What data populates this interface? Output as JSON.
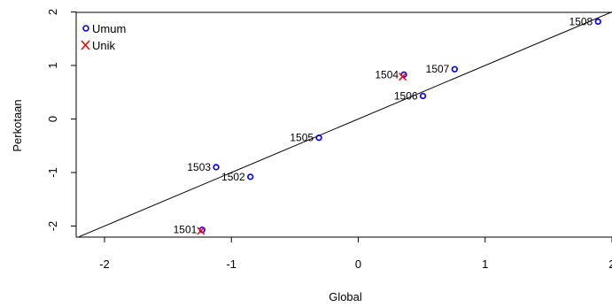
{
  "chart_data": {
    "type": "scatter",
    "xlabel": "Global",
    "ylabel": "Perkotaan",
    "xlim": [
      -2.2,
      2
    ],
    "ylim": [
      -2.25,
      2
    ],
    "xticks": [
      -2,
      -1,
      0,
      1,
      2
    ],
    "yticks": [
      -2,
      -1,
      0,
      1,
      2
    ],
    "grid": false,
    "legend_position": "top-left",
    "reference_line": {
      "slope": 1,
      "intercept": 0,
      "color": "#000000"
    },
    "series": [
      {
        "name": "Umum",
        "marker": "circle",
        "color": "#0000ff",
        "points": [
          {
            "label": "1501",
            "x": -1.23,
            "y": -2.07
          },
          {
            "label": "1502",
            "x": -0.85,
            "y": -1.08
          },
          {
            "label": "1503",
            "x": -1.12,
            "y": -0.9
          },
          {
            "label": "1504",
            "x": 0.36,
            "y": 0.83
          },
          {
            "label": "1505",
            "x": -0.31,
            "y": -0.35
          },
          {
            "label": "1506",
            "x": 0.51,
            "y": 0.43
          },
          {
            "label": "1507",
            "x": 0.76,
            "y": 0.93
          },
          {
            "label": "1508",
            "x": 1.89,
            "y": 1.82
          }
        ]
      },
      {
        "name": "Unik",
        "marker": "x",
        "color": "#ff0000",
        "points": [
          {
            "label": "1501",
            "x": -1.24,
            "y": -2.09
          },
          {
            "label": "1504",
            "x": 0.35,
            "y": 0.79
          }
        ]
      }
    ]
  }
}
